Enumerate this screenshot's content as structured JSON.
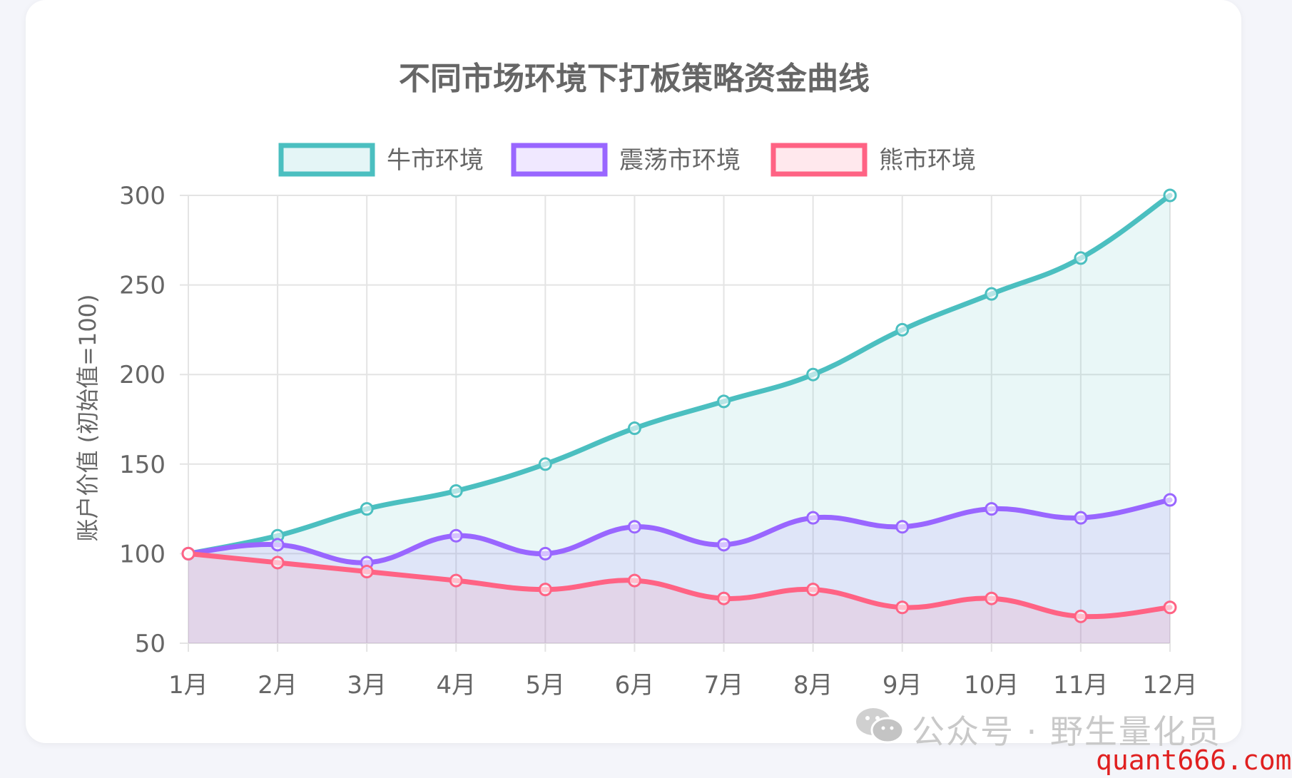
{
  "chart_data": {
    "type": "area",
    "title": "不同市场环境下打板策略资金曲线",
    "ylabel": "账户价值 (初始值=100)",
    "xlabel": "",
    "categories": [
      "1月",
      "2月",
      "3月",
      "4月",
      "5月",
      "6月",
      "7月",
      "8月",
      "9月",
      "10月",
      "11月",
      "12月"
    ],
    "ylim": [
      50,
      300
    ],
    "yticks": [
      50,
      100,
      150,
      200,
      250,
      300
    ],
    "grid": true,
    "legend_position": "top",
    "series": [
      {
        "name": "牛市环境",
        "color": "#4bbfc0",
        "fill": "rgba(75,191,192,0.12)",
        "values": [
          100,
          110,
          125,
          135,
          150,
          170,
          185,
          200,
          225,
          245,
          265,
          300
        ]
      },
      {
        "name": "震荡市环境",
        "color": "#9966ff",
        "fill": "rgba(153,102,255,0.12)",
        "values": [
          100,
          105,
          95,
          110,
          100,
          115,
          105,
          120,
          115,
          125,
          120,
          130
        ]
      },
      {
        "name": "熊市环境",
        "color": "#ff6384",
        "fill": "rgba(255,99,132,0.12)",
        "values": [
          100,
          95,
          90,
          85,
          80,
          85,
          75,
          80,
          70,
          75,
          65,
          70
        ]
      }
    ]
  },
  "watermark": {
    "text": "公众号 · 野生量化员",
    "icon": "wechat-icon"
  },
  "site_mark": "quant666.com"
}
